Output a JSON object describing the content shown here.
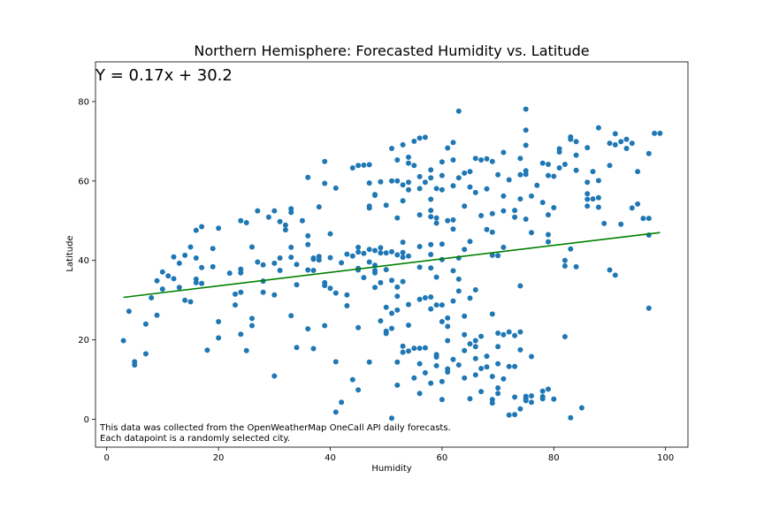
{
  "chart_data": {
    "type": "scatter",
    "title": "Northern Hemisphere: Forecasted Humidity vs. Latitude",
    "xlabel": "Humidity",
    "ylabel": "Latitude",
    "xlim": [
      -2,
      104
    ],
    "ylim": [
      -7,
      90
    ],
    "xticks": [
      0,
      20,
      40,
      60,
      80,
      100
    ],
    "yticks": [
      0,
      20,
      40,
      60,
      80
    ],
    "grid": false,
    "colors": {
      "points": "#1f77b4",
      "regression": "#008000",
      "axes": "#000000"
    },
    "regression": {
      "equation": "Y = 0.17x + 30.2",
      "x_range": [
        3,
        99
      ],
      "slope": 0.17,
      "intercept": 30.2
    },
    "note_lines": [
      "This data was collected from the OpenWeatherMap OneCall API daily forecasts.",
      "Each datapoint is a randomly selected city."
    ],
    "points": [
      [
        3,
        19.8
      ],
      [
        4,
        27.2
      ],
      [
        5,
        14.5
      ],
      [
        5,
        13.7
      ],
      [
        7,
        16.5
      ],
      [
        7,
        24
      ],
      [
        8,
        30.6
      ],
      [
        9,
        26.2
      ],
      [
        9,
        34.9
      ],
      [
        10,
        37.1
      ],
      [
        10,
        32.8
      ],
      [
        11,
        36.1
      ],
      [
        12,
        35.4
      ],
      [
        12,
        40.9
      ],
      [
        13,
        39.3
      ],
      [
        13,
        33.2
      ],
      [
        14,
        41.3
      ],
      [
        14,
        30
      ],
      [
        15,
        43.4
      ],
      [
        15,
        29.6
      ],
      [
        16,
        40.6
      ],
      [
        16,
        34.4
      ],
      [
        16,
        35.3
      ],
      [
        16,
        47.6
      ],
      [
        17,
        48.5
      ],
      [
        17,
        34.2
      ],
      [
        17,
        38.2
      ],
      [
        18,
        17.4
      ],
      [
        19,
        43
      ],
      [
        19,
        38.4
      ],
      [
        20,
        48.1
      ],
      [
        20,
        24.6
      ],
      [
        20,
        20.5
      ],
      [
        22,
        36.8
      ],
      [
        23,
        31.5
      ],
      [
        23,
        28.8
      ],
      [
        24,
        50
      ],
      [
        24,
        37.8
      ],
      [
        24,
        36.9
      ],
      [
        24,
        21.4
      ],
      [
        24,
        32
      ],
      [
        25,
        49.5
      ],
      [
        25,
        17.3
      ],
      [
        26,
        43.4
      ],
      [
        26,
        25.4
      ],
      [
        26,
        23.6
      ],
      [
        27,
        52.5
      ],
      [
        27,
        39.6
      ],
      [
        28,
        38.9
      ],
      [
        28,
        32
      ],
      [
        28,
        34.8
      ],
      [
        29,
        50.9
      ],
      [
        30,
        52.5
      ],
      [
        30,
        39.3
      ],
      [
        30,
        31.3
      ],
      [
        30,
        10.9
      ],
      [
        31,
        49.8
      ],
      [
        31,
        40.6
      ],
      [
        31,
        37.5
      ],
      [
        32,
        47.7
      ],
      [
        32,
        48.9
      ],
      [
        33,
        53
      ],
      [
        33,
        52.1
      ],
      [
        33,
        43.3
      ],
      [
        33,
        26.1
      ],
      [
        33,
        40.8
      ],
      [
        34,
        39
      ],
      [
        34,
        33.9
      ],
      [
        34,
        18.1
      ],
      [
        35,
        50
      ],
      [
        36,
        60.9
      ],
      [
        36,
        46.2
      ],
      [
        36,
        44
      ],
      [
        36,
        37.6
      ],
      [
        36,
        22.8
      ],
      [
        37,
        40.6
      ],
      [
        37,
        37.5
      ],
      [
        37,
        40.3
      ],
      [
        37,
        17.8
      ],
      [
        38,
        41
      ],
      [
        38,
        53.5
      ],
      [
        38,
        40.1
      ],
      [
        39,
        64.9
      ],
      [
        39,
        59.4
      ],
      [
        39,
        33.7
      ],
      [
        39,
        34.4
      ],
      [
        39,
        23.6
      ],
      [
        40,
        46.7
      ],
      [
        40,
        40.7
      ],
      [
        40,
        33
      ],
      [
        41,
        58.2
      ],
      [
        41,
        31.8
      ],
      [
        41,
        14.5
      ],
      [
        41,
        1.8
      ],
      [
        42,
        39.4
      ],
      [
        42,
        4.3
      ],
      [
        43,
        41.6
      ],
      [
        43,
        31.3
      ],
      [
        43,
        28.6
      ],
      [
        44,
        63.3
      ],
      [
        44,
        41.1
      ],
      [
        44,
        10
      ],
      [
        45,
        63.9
      ],
      [
        45,
        43.3
      ],
      [
        45,
        42.1
      ],
      [
        45,
        38
      ],
      [
        45,
        37.6
      ],
      [
        45,
        23.1
      ],
      [
        45,
        7.4
      ],
      [
        46,
        64
      ],
      [
        46,
        41.8
      ],
      [
        46,
        35.7
      ],
      [
        47,
        64.1
      ],
      [
        47,
        59.5
      ],
      [
        47,
        53.7
      ],
      [
        47,
        53.2
      ],
      [
        47,
        42.8
      ],
      [
        47,
        39.6
      ],
      [
        47,
        14.4
      ],
      [
        48,
        56.4
      ],
      [
        48,
        56.6
      ],
      [
        48,
        42.5
      ],
      [
        48,
        38.8
      ],
      [
        48,
        37.5
      ],
      [
        48,
        36.9
      ],
      [
        48,
        33.2
      ],
      [
        49,
        59.8
      ],
      [
        49,
        43.2
      ],
      [
        49,
        41.9
      ],
      [
        49,
        34.4
      ],
      [
        49,
        24.8
      ],
      [
        50,
        53.9
      ],
      [
        50,
        41.9
      ],
      [
        50,
        37.7
      ],
      [
        50,
        28.2
      ],
      [
        50,
        22.2
      ],
      [
        50,
        21.6
      ],
      [
        51,
        68.2
      ],
      [
        51,
        60
      ],
      [
        51,
        42.2
      ],
      [
        51,
        35
      ],
      [
        51,
        26.7
      ],
      [
        51,
        22.9
      ],
      [
        51,
        0.3
      ],
      [
        52,
        65.3
      ],
      [
        52,
        60
      ],
      [
        52,
        50.7
      ],
      [
        52,
        41.4
      ],
      [
        52,
        33.3
      ],
      [
        52,
        31
      ],
      [
        52,
        27.5
      ],
      [
        52,
        14.4
      ],
      [
        52,
        8.6
      ],
      [
        53,
        69.1
      ],
      [
        53,
        59
      ],
      [
        53,
        55
      ],
      [
        53,
        44.6
      ],
      [
        53,
        42
      ],
      [
        53,
        40.8
      ],
      [
        53,
        34.7
      ],
      [
        53,
        18.4
      ],
      [
        53,
        16.9
      ],
      [
        54,
        66
      ],
      [
        54,
        64.5
      ],
      [
        54,
        59.7
      ],
      [
        54,
        57.8
      ],
      [
        54,
        41.1
      ],
      [
        54,
        28.9
      ],
      [
        54,
        23.7
      ],
      [
        54,
        17.2
      ],
      [
        55,
        70
      ],
      [
        55,
        63.9
      ],
      [
        55,
        10.4
      ],
      [
        55,
        17.9
      ],
      [
        56,
        70.8
      ],
      [
        56,
        61.1
      ],
      [
        56,
        58.1
      ],
      [
        56,
        51.5
      ],
      [
        56,
        43.5
      ],
      [
        56,
        38.3
      ],
      [
        56,
        30.2
      ],
      [
        56,
        17.9
      ],
      [
        56,
        14
      ],
      [
        56,
        6.5
      ],
      [
        57,
        71
      ],
      [
        57,
        59.7
      ],
      [
        57,
        30.6
      ],
      [
        57,
        18
      ],
      [
        57,
        11.7
      ],
      [
        58,
        62.8
      ],
      [
        58,
        60.8
      ],
      [
        58,
        55.4
      ],
      [
        58,
        52.6
      ],
      [
        58,
        51
      ],
      [
        58,
        44
      ],
      [
        58,
        41.5
      ],
      [
        58,
        38.1
      ],
      [
        58,
        30.8
      ],
      [
        58,
        27.8
      ],
      [
        58,
        9.1
      ],
      [
        59,
        58.1
      ],
      [
        59,
        50.7
      ],
      [
        59,
        49.4
      ],
      [
        59,
        35.8
      ],
      [
        59,
        28.8
      ],
      [
        59,
        16.3
      ],
      [
        59,
        15.7
      ],
      [
        59,
        13.5
      ],
      [
        60,
        64.8
      ],
      [
        60,
        61.4
      ],
      [
        60,
        57.8
      ],
      [
        60,
        44.1
      ],
      [
        60,
        40.2
      ],
      [
        60,
        28.8
      ],
      [
        60,
        24.6
      ],
      [
        60,
        9.5
      ],
      [
        60,
        5
      ],
      [
        61,
        68.3
      ],
      [
        61,
        50
      ],
      [
        61,
        25.5
      ],
      [
        61,
        23.4
      ],
      [
        61,
        19.8
      ],
      [
        61,
        12.7
      ],
      [
        61,
        11.9
      ],
      [
        62,
        69.7
      ],
      [
        62,
        65.3
      ],
      [
        62,
        58.8
      ],
      [
        62,
        50.2
      ],
      [
        62,
        47.9
      ],
      [
        62,
        37.4
      ],
      [
        62,
        29.8
      ],
      [
        62,
        15.1
      ],
      [
        63,
        77.6
      ],
      [
        63,
        60.8
      ],
      [
        63,
        40.6
      ],
      [
        63,
        35.3
      ],
      [
        63,
        32.3
      ],
      [
        63,
        13.7
      ],
      [
        64,
        62
      ],
      [
        64,
        53.7
      ],
      [
        64,
        42.8
      ],
      [
        64,
        26
      ],
      [
        64,
        21.3
      ],
      [
        64,
        17.3
      ],
      [
        64,
        10.4
      ],
      [
        65,
        62.4
      ],
      [
        65,
        58.5
      ],
      [
        65,
        44.8
      ],
      [
        65,
        30.5
      ],
      [
        65,
        19
      ],
      [
        65,
        5.2
      ],
      [
        66,
        65.7
      ],
      [
        66,
        57.1
      ],
      [
        66,
        32.6
      ],
      [
        66,
        19.8
      ],
      [
        66,
        18.3
      ],
      [
        66,
        15.3
      ],
      [
        66,
        11.2
      ],
      [
        67,
        65.3
      ],
      [
        67,
        51.3
      ],
      [
        67,
        20.9
      ],
      [
        67,
        12.8
      ],
      [
        67,
        7
      ],
      [
        68,
        65.6
      ],
      [
        68,
        58
      ],
      [
        68,
        47.8
      ],
      [
        68,
        15.9
      ],
      [
        68,
        13.2
      ],
      [
        69,
        64.9
      ],
      [
        69,
        51.8
      ],
      [
        69,
        47.1
      ],
      [
        69,
        41.3
      ],
      [
        69,
        26.5
      ],
      [
        69,
        10.8
      ],
      [
        69,
        5
      ],
      [
        69,
        4.1
      ],
      [
        70,
        61.6
      ],
      [
        70,
        41.2
      ],
      [
        70,
        21.7
      ],
      [
        70,
        18.3
      ],
      [
        70,
        14
      ],
      [
        70,
        6.5
      ],
      [
        70,
        7.9
      ],
      [
        71,
        67.2
      ],
      [
        71,
        56.2
      ],
      [
        71,
        52.5
      ],
      [
        71,
        43.3
      ],
      [
        71,
        21.3
      ],
      [
        71,
        10.2
      ],
      [
        72,
        60.3
      ],
      [
        72,
        22
      ],
      [
        72,
        13.3
      ],
      [
        72,
        1.1
      ],
      [
        73,
        52.6
      ],
      [
        73,
        50.9
      ],
      [
        73,
        21.1
      ],
      [
        73,
        13.3
      ],
      [
        73,
        5.6
      ],
      [
        73,
        1.2
      ],
      [
        74,
        65.7
      ],
      [
        74,
        61.6
      ],
      [
        74,
        55.5
      ],
      [
        74,
        33.6
      ],
      [
        74,
        22
      ],
      [
        74,
        17.5
      ],
      [
        74,
        2.6
      ],
      [
        75,
        78.1
      ],
      [
        75,
        72.8
      ],
      [
        75,
        69
      ],
      [
        75,
        62.6
      ],
      [
        75,
        61.7
      ],
      [
        75,
        50.4
      ],
      [
        75,
        5.8
      ],
      [
        75,
        5.2
      ],
      [
        75,
        4.7
      ],
      [
        76,
        56.2
      ],
      [
        76,
        47
      ],
      [
        76,
        15.8
      ],
      [
        76,
        5.9
      ],
      [
        76,
        4.3
      ],
      [
        77,
        58.9
      ],
      [
        78,
        64.5
      ],
      [
        78,
        54.6
      ],
      [
        78,
        5.2
      ],
      [
        78,
        5.7
      ],
      [
        78,
        7.1
      ],
      [
        79,
        64.2
      ],
      [
        79,
        61.4
      ],
      [
        79,
        51.5
      ],
      [
        79,
        46.5
      ],
      [
        79,
        44.7
      ],
      [
        79,
        7.6
      ],
      [
        80,
        61.2
      ],
      [
        80,
        53.3
      ],
      [
        80,
        5.1
      ],
      [
        81,
        68.1
      ],
      [
        81,
        67.3
      ],
      [
        81,
        63.3
      ],
      [
        82,
        64.2
      ],
      [
        82,
        40
      ],
      [
        82,
        38.6
      ],
      [
        82,
        20.8
      ],
      [
        83,
        71.1
      ],
      [
        83,
        70.5
      ],
      [
        83,
        42.9
      ],
      [
        83,
        0.4
      ],
      [
        84,
        69.9
      ],
      [
        84,
        66.5
      ],
      [
        84,
        62.7
      ],
      [
        84,
        38.4
      ],
      [
        85,
        2.9
      ],
      [
        86,
        68.4
      ],
      [
        86,
        59.7
      ],
      [
        86,
        56.8
      ],
      [
        86,
        53.7
      ],
      [
        86,
        55.4
      ],
      [
        87,
        62.4
      ],
      [
        87,
        55.5
      ],
      [
        88,
        73.4
      ],
      [
        88,
        60.1
      ],
      [
        88,
        55.8
      ],
      [
        88,
        53.4
      ],
      [
        89,
        49.3
      ],
      [
        90,
        69.5
      ],
      [
        90,
        63.9
      ],
      [
        90,
        37.6
      ],
      [
        91,
        71.9
      ],
      [
        91,
        69.1
      ],
      [
        91,
        36.3
      ],
      [
        92,
        49.1
      ],
      [
        92,
        69.9
      ],
      [
        93,
        70.5
      ],
      [
        93,
        68.2
      ],
      [
        94,
        69.5
      ],
      [
        94,
        53.2
      ],
      [
        95,
        62.4
      ],
      [
        95,
        54.2
      ],
      [
        96,
        50.6
      ],
      [
        97,
        66.9
      ],
      [
        97,
        50.6
      ],
      [
        97,
        46.4
      ],
      [
        97,
        28
      ],
      [
        98,
        72
      ],
      [
        99,
        72
      ]
    ]
  }
}
